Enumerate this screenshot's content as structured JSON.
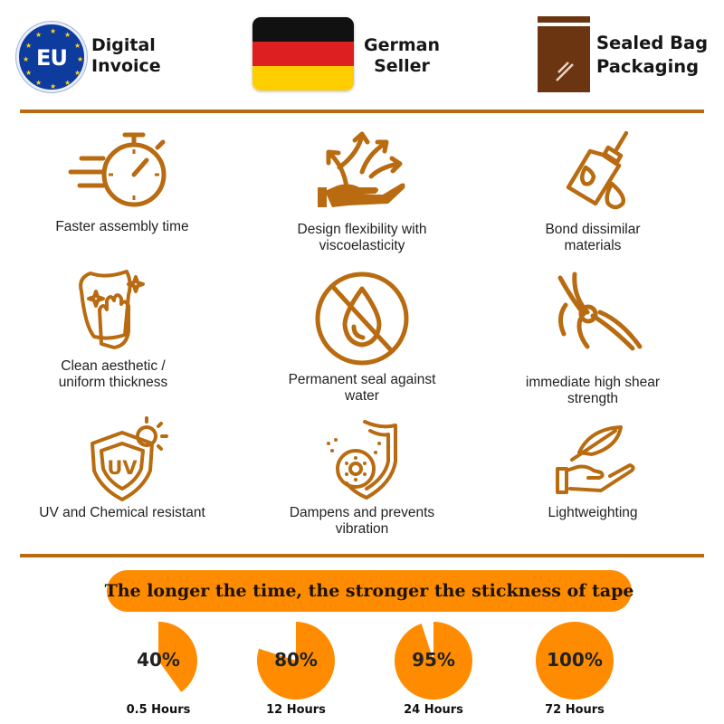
{
  "header": {
    "eu_badge": {
      "icon": "eu-flag-icon",
      "circle_text": "EU",
      "line1": "Digital",
      "line2": "Invoice"
    },
    "german_seller": {
      "icon": "german-flag-icon",
      "line1": "German",
      "line2": "Seller",
      "flag_colors": [
        "#111111",
        "#dd1f22",
        "#ffce00"
      ]
    },
    "sealed_bag": {
      "icon": "sealed-bag-icon",
      "line1": "Sealed Bag",
      "line2": "Packaging",
      "color": "#6b3511"
    }
  },
  "accent_color": "#b86b10",
  "features": [
    {
      "icon": "stopwatch-icon",
      "line1": "Faster assembly time",
      "line2": ""
    },
    {
      "icon": "hand-arrows-icon",
      "line1": "Design flexibility with",
      "line2": "viscoelasticity"
    },
    {
      "icon": "glue-bottle-icon",
      "line1": "Bond dissimilar",
      "line2": "materials"
    },
    {
      "icon": "hand-wipe-icon",
      "line1": "Clean aesthetic /",
      "line2": "uniform thickness"
    },
    {
      "icon": "no-water-icon",
      "line1": "Permanent seal against",
      "line2": "water"
    },
    {
      "icon": "shears-icon",
      "line1": "immediate high shear",
      "line2": "strength"
    },
    {
      "icon": "uv-shield-icon",
      "line1": "UV and Chemical resistant",
      "line2": ""
    },
    {
      "icon": "vibration-shield-icon",
      "line1": "Dampens and prevents",
      "line2": "vibration"
    },
    {
      "icon": "feather-hand-icon",
      "line1": "Lightweighting",
      "line2": ""
    }
  ],
  "stickiness": {
    "banner": "The longer the time, the stronger the stickness of tape",
    "banner_color": "#ff8c00",
    "stages": [
      {
        "percent_label": "40%",
        "fraction": 0.4,
        "time": "0.5 Hours"
      },
      {
        "percent_label": "80%",
        "fraction": 0.8,
        "time": "12 Hours"
      },
      {
        "percent_label": "95%",
        "fraction": 0.95,
        "time": "24 Hours"
      },
      {
        "percent_label": "100%",
        "fraction": 1.0,
        "time": "72 Hours"
      }
    ]
  }
}
